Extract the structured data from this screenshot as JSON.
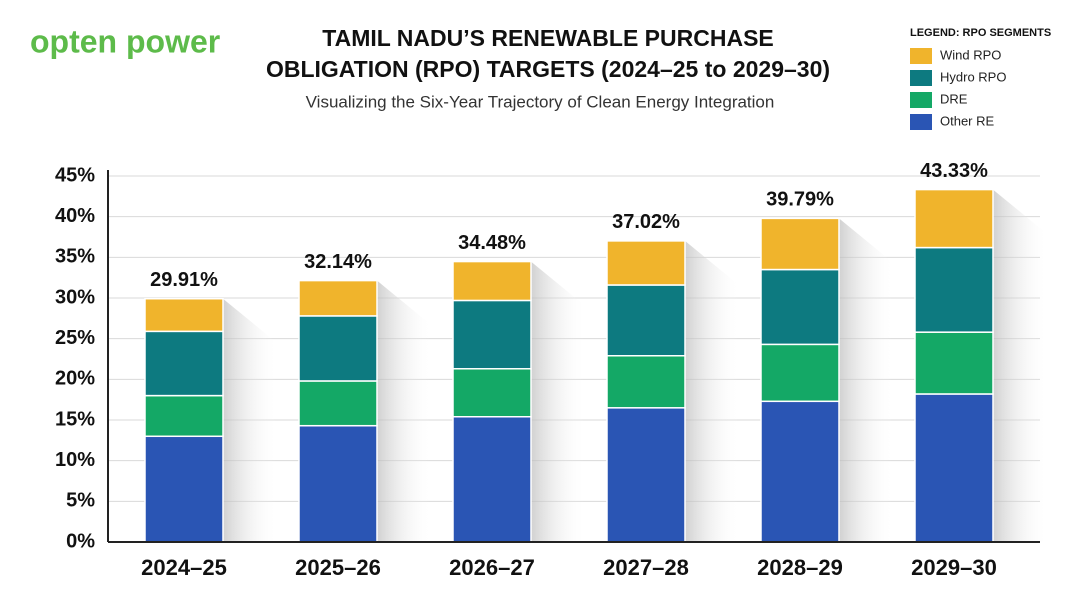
{
  "brand": "opten power",
  "chart_data": {
    "type": "stacked_bar",
    "title": [
      "TAMIL NADU’S RENEWABLE PURCHASE",
      "OBLIGATION (RPO) TARGETS (2024–25 to 2029–30)"
    ],
    "subtitle": "Visualizing the Six-Year Trajectory of Clean Energy Integration",
    "legend_title": "LEGEND: RPO SEGMENTS",
    "legend_position": "upper right",
    "categories": [
      "2024–25",
      "2025–26",
      "2026–27",
      "2027–28",
      "2028–29",
      "2029–30"
    ],
    "series": [
      {
        "name": "Wind RPO",
        "color": "#f0b42c",
        "values": [
          4.01,
          4.34,
          4.78,
          5.42,
          6.29,
          7.13
        ]
      },
      {
        "name": "Hydro RPO",
        "color": "#0d7a80",
        "values": [
          7.9,
          8.0,
          8.4,
          8.7,
          9.2,
          10.4
        ]
      },
      {
        "name": "DRE",
        "color": "#14a866",
        "values": [
          5.0,
          5.5,
          5.9,
          6.4,
          7.0,
          7.6
        ]
      },
      {
        "name": "Other RE",
        "color": "#2a55b4",
        "values": [
          13.0,
          14.3,
          15.4,
          16.5,
          17.3,
          18.2
        ]
      }
    ],
    "totals": {
      "values": [
        29.91,
        32.14,
        34.48,
        37.02,
        39.79,
        43.33
      ],
      "value_labels": [
        "29.91%",
        "32.14%",
        "34.48%",
        "37.02%",
        "39.79%",
        "43.33%"
      ]
    },
    "ylim": [
      0,
      45
    ],
    "yticks": [
      {
        "value": 0,
        "label": "0%"
      },
      {
        "value": 5,
        "label": "5%"
      },
      {
        "value": 10,
        "label": "10%"
      },
      {
        "value": 15,
        "label": "15%"
      },
      {
        "value": 20,
        "label": "20%"
      },
      {
        "value": 25,
        "label": "25%"
      },
      {
        "value": 30,
        "label": "30%"
      },
      {
        "value": 35,
        "label": "35%"
      },
      {
        "value": 40,
        "label": "40%"
      },
      {
        "value": 45,
        "label": "45%"
      }
    ],
    "grid": true
  }
}
